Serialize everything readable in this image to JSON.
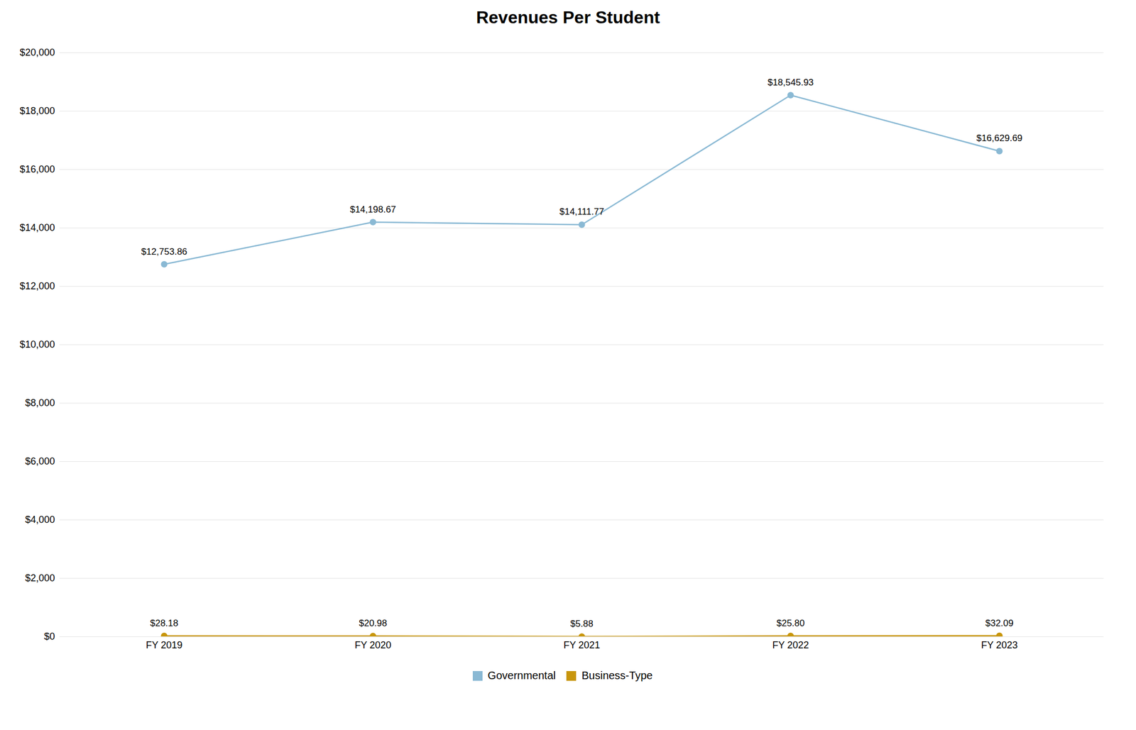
{
  "chart_data": {
    "type": "line",
    "title": "Revenues Per Student",
    "categories": [
      "FY 2019",
      "FY 2020",
      "FY 2021",
      "FY 2022",
      "FY 2023"
    ],
    "series": [
      {
        "name": "Governmental",
        "color": "#8ab9d4",
        "marker": "circle",
        "values": [
          12753.86,
          14198.67,
          14111.77,
          18545.93,
          16629.69
        ],
        "value_labels": [
          "$12,753.86",
          "$14,198.67",
          "$14,111.77",
          "$18,545.93",
          "$16,629.69"
        ]
      },
      {
        "name": "Business-Type",
        "color": "#c8960c",
        "marker": "circle",
        "values": [
          28.18,
          20.98,
          5.88,
          25.8,
          32.09
        ],
        "value_labels": [
          "$28.18",
          "$20.98",
          "$5.88",
          "$25.80",
          "$32.09"
        ]
      }
    ],
    "ylim": [
      0,
      20000
    ],
    "yticks": [
      {
        "value": 0,
        "label": "$0"
      },
      {
        "value": 2000,
        "label": "$2,000"
      },
      {
        "value": 4000,
        "label": "$4,000"
      },
      {
        "value": 6000,
        "label": "$6,000"
      },
      {
        "value": 8000,
        "label": "$8,000"
      },
      {
        "value": 10000,
        "label": "$10,000"
      },
      {
        "value": 12000,
        "label": "$12,000"
      },
      {
        "value": 14000,
        "label": "$14,000"
      },
      {
        "value": 16000,
        "label": "$16,000"
      },
      {
        "value": 18000,
        "label": "$18,000"
      },
      {
        "value": 20000,
        "label": "$20,000"
      }
    ],
    "grid": true,
    "data_labels": true,
    "legend": "bottom"
  }
}
